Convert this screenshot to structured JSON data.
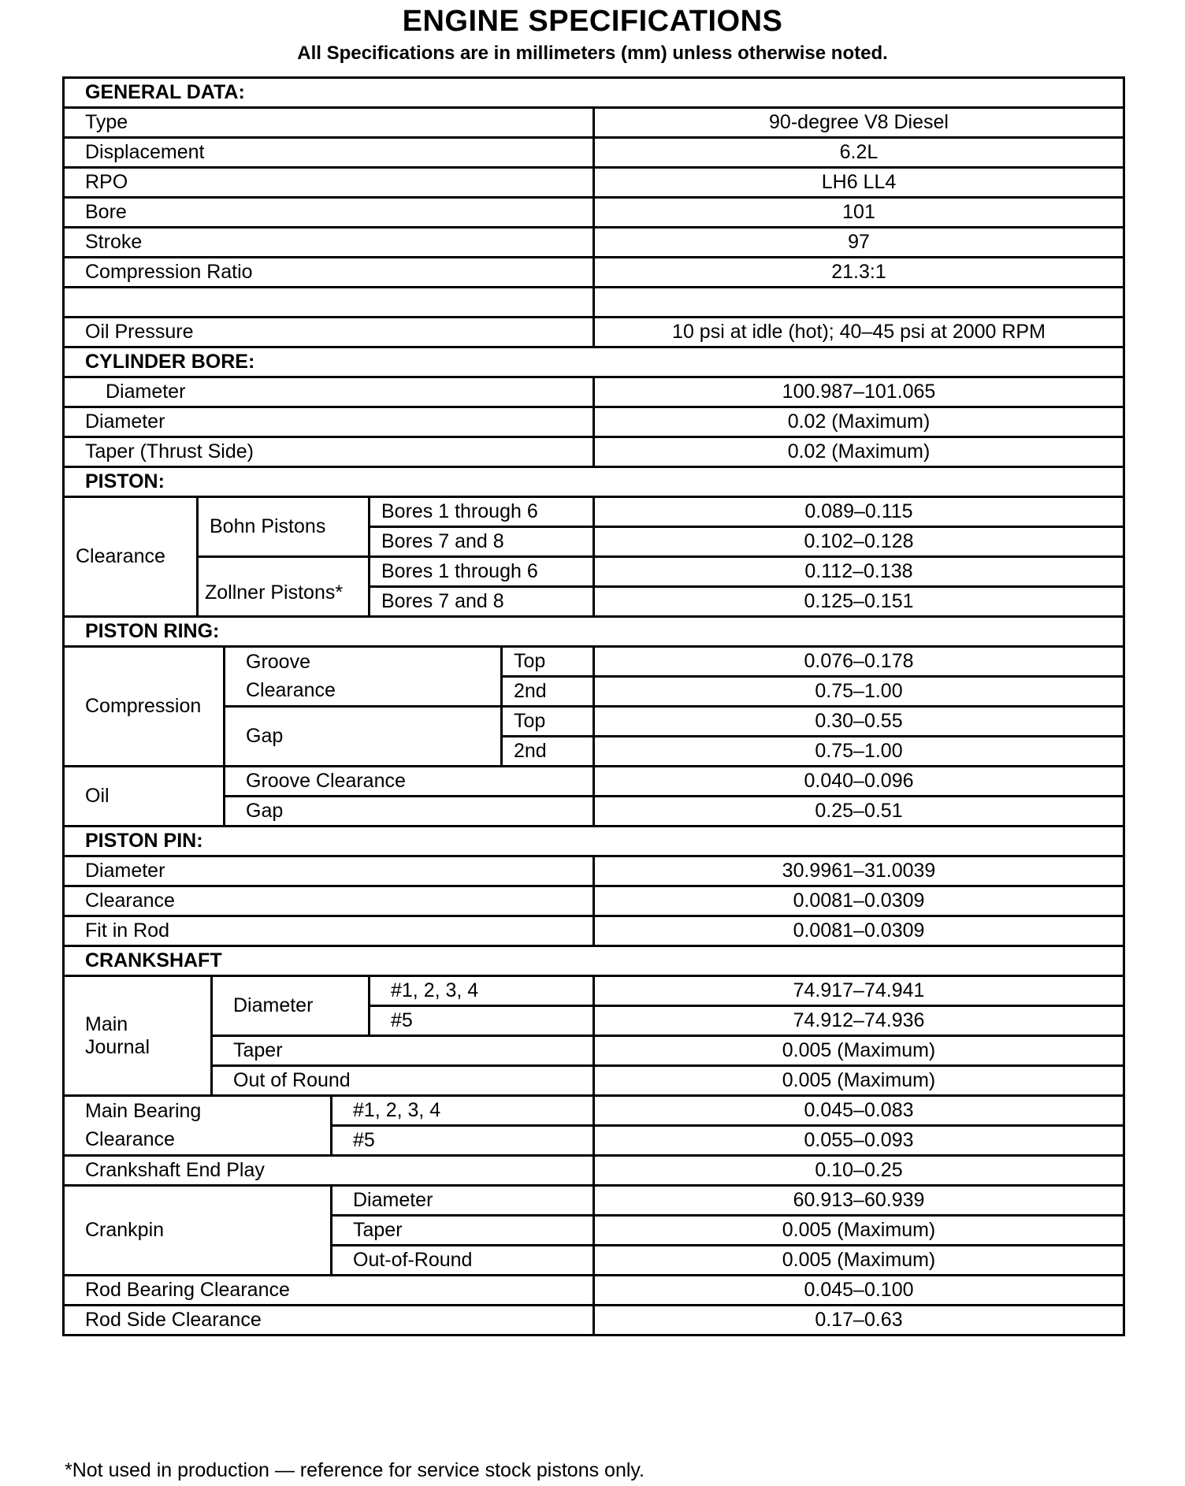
{
  "title": "ENGINE SPECIFICATIONS",
  "subtitle": "All Specifications are in millimeters (mm) unless otherwise noted.",
  "general": {
    "heading": "GENERAL DATA:",
    "rows": [
      {
        "label": "Type",
        "value": "90-degree V8 Diesel"
      },
      {
        "label": "Displacement",
        "value": "6.2L"
      },
      {
        "label": "RPO",
        "value": "LH6 LL4"
      },
      {
        "label": "Bore",
        "value": "101"
      },
      {
        "label": "Stroke",
        "value": "97"
      },
      {
        "label": "Compression Ratio",
        "value": "21.3:1"
      },
      {
        "label": "",
        "value": ""
      },
      {
        "label": "Oil Pressure",
        "value": "10 psi at idle (hot); 40–45 psi at 2000 RPM"
      }
    ]
  },
  "cylinder_bore": {
    "heading": "CYLINDER BORE:",
    "rows": [
      {
        "label": "Diameter",
        "value": "100.987–101.065"
      },
      {
        "label": "Diameter",
        "value": "0.02 (Maximum)"
      },
      {
        "label": "Taper (Thrust Side)",
        "value": "0.02 (Maximum)"
      }
    ]
  },
  "piston": {
    "heading": "PISTON:",
    "group": "Clearance",
    "bohn": "Bohn Pistons",
    "zollner": "Zollner Pistons*",
    "rows": [
      {
        "label": "Bores 1 through 6",
        "value": "0.089–0.115"
      },
      {
        "label": "Bores 7 and 8",
        "value": "0.102–0.128"
      },
      {
        "label": "Bores 1 through 6",
        "value": "0.112–0.138"
      },
      {
        "label": "Bores 7 and 8",
        "value": "0.125–0.151"
      }
    ]
  },
  "piston_ring": {
    "heading": "PISTON RING:",
    "compression": "Compression",
    "groove_l1": "Groove",
    "groove_l2": "Clearance",
    "gap": "Gap",
    "rows": [
      {
        "label": "Top",
        "value": "0.076–0.178"
      },
      {
        "label": "2nd",
        "value": "0.75–1.00"
      },
      {
        "label": "Top",
        "value": "0.30–0.55"
      },
      {
        "label": "2nd",
        "value": "0.75–1.00"
      }
    ],
    "oil": "Oil",
    "oil_rows": [
      {
        "label": "Groove Clearance",
        "value": "0.040–0.096"
      },
      {
        "label": "Gap",
        "value": "0.25–0.51"
      }
    ]
  },
  "piston_pin": {
    "heading": "PISTON PIN:",
    "rows": [
      {
        "label": "Diameter",
        "value": "30.9961–31.0039"
      },
      {
        "label": "Clearance",
        "value": "0.0081–0.0309"
      },
      {
        "label": "Fit in Rod",
        "value": "0.0081–0.0309"
      }
    ]
  },
  "crankshaft": {
    "heading": "CRANKSHAFT",
    "main_journal_l1": "Main",
    "main_journal_l2": "Journal",
    "diameter": "Diameter",
    "journal_rows": [
      {
        "label": "#1, 2, 3, 4",
        "value": "74.917–74.941"
      },
      {
        "label": "#5",
        "value": "74.912–74.936"
      },
      {
        "label": "Taper",
        "value": "0.005 (Maximum)"
      },
      {
        "label": "Out of Round",
        "value": "0.005 (Maximum)"
      }
    ],
    "main_bearing_l1": "Main Bearing",
    "main_bearing_l2": "Clearance",
    "bearing_rows": [
      {
        "label": "#1, 2, 3, 4",
        "value": "0.045–0.083"
      },
      {
        "label": "#5",
        "value": "0.055–0.093"
      }
    ],
    "end_play": {
      "label": "Crankshaft End Play",
      "value": "0.10–0.25"
    },
    "crankpin": "Crankpin",
    "crankpin_rows": [
      {
        "label": "Diameter",
        "value": "60.913–60.939"
      },
      {
        "label": "Taper",
        "value": "0.005 (Maximum)"
      },
      {
        "label": "Out-of-Round",
        "value": "0.005 (Maximum)"
      }
    ],
    "rod_bearing": {
      "label": "Rod Bearing Clearance",
      "value": "0.045–0.100"
    },
    "rod_side": {
      "label": "Rod Side Clearance",
      "value": "0.17–0.63"
    }
  },
  "footnote": "*Not used in production — reference for service stock pistons only."
}
